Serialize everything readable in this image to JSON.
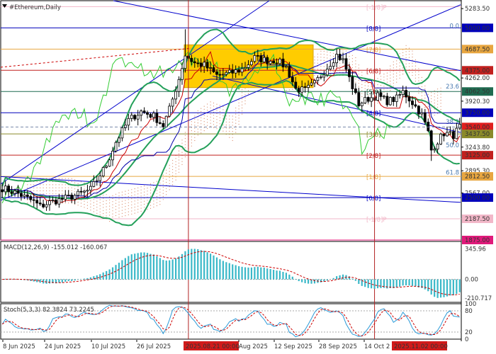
{
  "chart_data": {
    "type": "candlestick",
    "title": "#Ethereum,Daily",
    "price_axis": {
      "ticks": [
        "5283.50",
        "5000.00",
        "4687.50",
        "4375.00",
        "4262.00",
        "4062.50",
        "3920.30",
        "3750.00",
        "3540.00",
        "3437.50",
        "3243.80",
        "3125.00",
        "2895.30",
        "2812.50",
        "2567.00",
        "2500.00",
        "2187.50",
        "1875.00"
      ],
      "range": [
        1875,
        5400
      ]
    },
    "time_axis": [
      "8 Jun 2025",
      "24 Jun 2025",
      "10 Jul 2025",
      "26 Jul 2025",
      "2025.08.21 00:00",
      "Aug 2025",
      "12 Sep 2025",
      "28 Sep 2025",
      "14 Oct 2",
      "2025.11.02 00:00"
    ],
    "murrey_levels": [
      {
        "label": "[-1/8]P",
        "price": 5312.5,
        "axis": "",
        "color": "#f2b7c8",
        "tag": false
      },
      {
        "label": "[8/8]",
        "price": 5000,
        "axis": "5000.00",
        "color": "#0000bb",
        "tag": true
      },
      {
        "label": "[7/8]",
        "price": 4687.5,
        "axis": "4687.50",
        "color": "#e8a640",
        "tag": true
      },
      {
        "label": "[6/8]",
        "price": 4375,
        "axis": "4375.00",
        "color": "#c2201e",
        "tag": true
      },
      {
        "label": "[5/8]",
        "price": 4062.5,
        "axis": "4062.50",
        "color": "#1f6b50",
        "tag": true
      },
      {
        "label": "[4/8]",
        "price": 3750,
        "axis": "3750.00",
        "color": "#0000bb",
        "tag": true
      },
      {
        "label": "[3/8]",
        "price": 3437.5,
        "axis": "3437.50",
        "color": "#8a8a2a",
        "tag": true
      },
      {
        "label": "[2/8]",
        "price": 3125,
        "axis": "3125.00",
        "color": "#c2201e",
        "tag": true
      },
      {
        "label": "[1/8]",
        "price": 2812.5,
        "axis": "2812.50",
        "color": "#e8a640",
        "tag": true
      },
      {
        "label": "[0/8]",
        "price": 2500,
        "axis": "2500.00",
        "color": "#0000bb",
        "tag": true
      },
      {
        "label": "[-1/8]P",
        "price": 2187.5,
        "axis": "2187.50",
        "color": "#f2b7c8",
        "tag": true
      },
      {
        "label": "",
        "price": 1875,
        "axis": "1875.00",
        "color": "#e0197a",
        "tag": true
      }
    ],
    "fibo_labels": [
      {
        "text": "0.0",
        "price": 5000
      },
      {
        "text": "23.6",
        "price": 4105
      },
      {
        "text": "38.2",
        "price": 3585
      },
      {
        "text": "50.0",
        "price": 3240
      },
      {
        "text": "61.8",
        "price": 2840
      }
    ],
    "current_price": {
      "value": 3540,
      "label": "3540.00"
    },
    "markers": [
      {
        "label": "2025.08.21 00:00",
        "bar": 59
      },
      {
        "label": "2025.11.02 00:00",
        "bar": 118
      }
    ],
    "macd": {
      "header": "MACD(12,26,9) -155.012 -160.067",
      "ticks": [
        "345.96",
        "0.00",
        "-210.717"
      ],
      "range": [
        -260,
        430
      ]
    },
    "stoch": {
      "header": "Stoch(5,3,3) 82.3824 73.2245",
      "ticks": [
        "100",
        "80",
        "20",
        "0"
      ]
    },
    "colors": {
      "bull": "#1a1a1a",
      "bear": "#1a1a1a",
      "bands": "#24a05a",
      "channel": "#0000cc",
      "tenkan": "#cc0000",
      "kijun": "#0000aa",
      "chikou": "#33cc33",
      "cloud": "#d98a6a",
      "zone": "#ffcc00",
      "macd_hist": "#3ab8c8",
      "macd_signal": "#cc0000",
      "stoch_main": "#2a9ad8",
      "stoch_signal": "#cc0000"
    }
  }
}
